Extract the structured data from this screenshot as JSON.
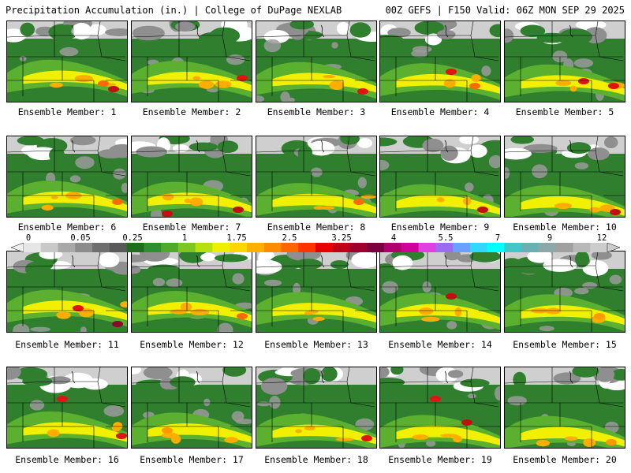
{
  "header": {
    "title_left": "Precipitation Accumulation (in.) | College of DuPage NEXLAB",
    "title_right": "00Z GEFS | F150 Valid: 06Z MON SEP 29 2025"
  },
  "label_prefix": "Ensemble Member: ",
  "members": [
    {
      "member": 1,
      "label": "Ensemble Member: 1",
      "max": [
        [
          135,
          112,
          "#c01010"
        ],
        [
          122,
          105,
          "#ff6a00"
        ]
      ]
    },
    {
      "member": 2,
      "label": "Ensemble Member: 2",
      "max": [
        [
          140,
          98,
          "#e01414"
        ]
      ]
    },
    {
      "member": 3,
      "label": "Ensemble Member: 3",
      "max": [
        [
          135,
          115,
          "#e01414"
        ]
      ]
    },
    {
      "member": 4,
      "label": "Ensemble Member: 4",
      "max": [
        [
          90,
          90,
          "#e01414"
        ],
        [
          120,
          108,
          "#ff6a00"
        ]
      ]
    },
    {
      "member": 5,
      "label": "Ensemble Member: 5",
      "max": [
        [
          100,
          102,
          "#e01414"
        ],
        [
          138,
          108,
          "#e01414"
        ]
      ]
    },
    {
      "member": 6,
      "label": "Ensemble Member: 6",
      "max": [
        [
          140,
          255,
          "#ff6a00"
        ]
      ]
    },
    {
      "member": 7,
      "label": "Ensemble Member: 7",
      "max": [
        [
          45,
          270,
          "#c01010"
        ],
        [
          135,
          265,
          "#c01010"
        ]
      ]
    },
    {
      "member": 8,
      "label": "Ensemble Member: 8",
      "max": [
        [
          130,
          255,
          "#ff6a00"
        ]
      ]
    },
    {
      "member": 9,
      "label": "Ensemble Member: 9",
      "max": [
        [
          130,
          265,
          "#c01010"
        ]
      ]
    },
    {
      "member": 10,
      "label": "Ensemble Member: 10",
      "max": [
        [
          140,
          268,
          "#c01010"
        ]
      ]
    },
    {
      "member": 11,
      "label": "Ensemble Member: 11",
      "max": [
        [
          90,
          390,
          "#e01414"
        ],
        [
          140,
          410,
          "#8a0a2a"
        ]
      ]
    },
    {
      "member": 12,
      "label": "Ensemble Member: 12",
      "max": [
        [
          140,
          400,
          "#ff6a00"
        ]
      ]
    },
    {
      "member": 13,
      "label": "Ensemble Member: 13",
      "max": []
    },
    {
      "member": 14,
      "label": "Ensemble Member: 14",
      "max": [
        [
          90,
          375,
          "#c01010"
        ]
      ]
    },
    {
      "member": 15,
      "label": "Ensemble Member: 15",
      "max": [
        [
          120,
          400,
          "#ff9900"
        ]
      ]
    },
    {
      "member": 16,
      "label": "Ensemble Member: 16",
      "max": [
        [
          70,
          505,
          "#e01414"
        ],
        [
          145,
          552,
          "#e01414"
        ]
      ]
    },
    {
      "member": 17,
      "label": "Ensemble Member: 17",
      "max": [
        [
          45,
          545,
          "#ff9900"
        ]
      ]
    },
    {
      "member": 18,
      "label": "Ensemble Member: 18",
      "max": [
        [
          140,
          555,
          "#e01414"
        ]
      ]
    },
    {
      "member": 19,
      "label": "Ensemble Member: 19",
      "max": [
        [
          70,
          505,
          "#e01414"
        ],
        [
          110,
          535,
          "#c01010"
        ]
      ]
    },
    {
      "member": 20,
      "label": "Ensemble Member: 20",
      "max": [
        [
          135,
          560,
          "#ff9900"
        ]
      ]
    }
  ],
  "colorbar": {
    "tick_labels": [
      "0",
      "0.05",
      "0.25",
      "1",
      "1.75",
      "2.5",
      "3.25",
      "4",
      "5.5",
      "7",
      "9",
      "12"
    ],
    "colors": [
      "#e6e6e6",
      "#c8c8c8",
      "#a8a8a8",
      "#8c8c8c",
      "#6f6f6f",
      "#5a5a5a",
      "#1e6e1e",
      "#2f8f2f",
      "#4daa2c",
      "#7cc820",
      "#b7e010",
      "#eef000",
      "#ffd700",
      "#ffb000",
      "#ff8c00",
      "#ff6600",
      "#ff3300",
      "#e60000",
      "#c00018",
      "#9e0030",
      "#7a0040",
      "#b00070",
      "#d0009a",
      "#e040e0",
      "#9a6cf0",
      "#6aa0ff",
      "#30d8ff",
      "#00ffff",
      "#40c8c8",
      "#6ab0b0",
      "#8ca8a8",
      "#a0a0a0",
      "#b8b8b8",
      "#cccccc"
    ]
  },
  "colors": {
    "background_green": "#2f7f2f",
    "light_green": "#5bb02f",
    "yellow": "#f0f000",
    "orange": "#ffae00",
    "gray": "#9a9a9a"
  }
}
